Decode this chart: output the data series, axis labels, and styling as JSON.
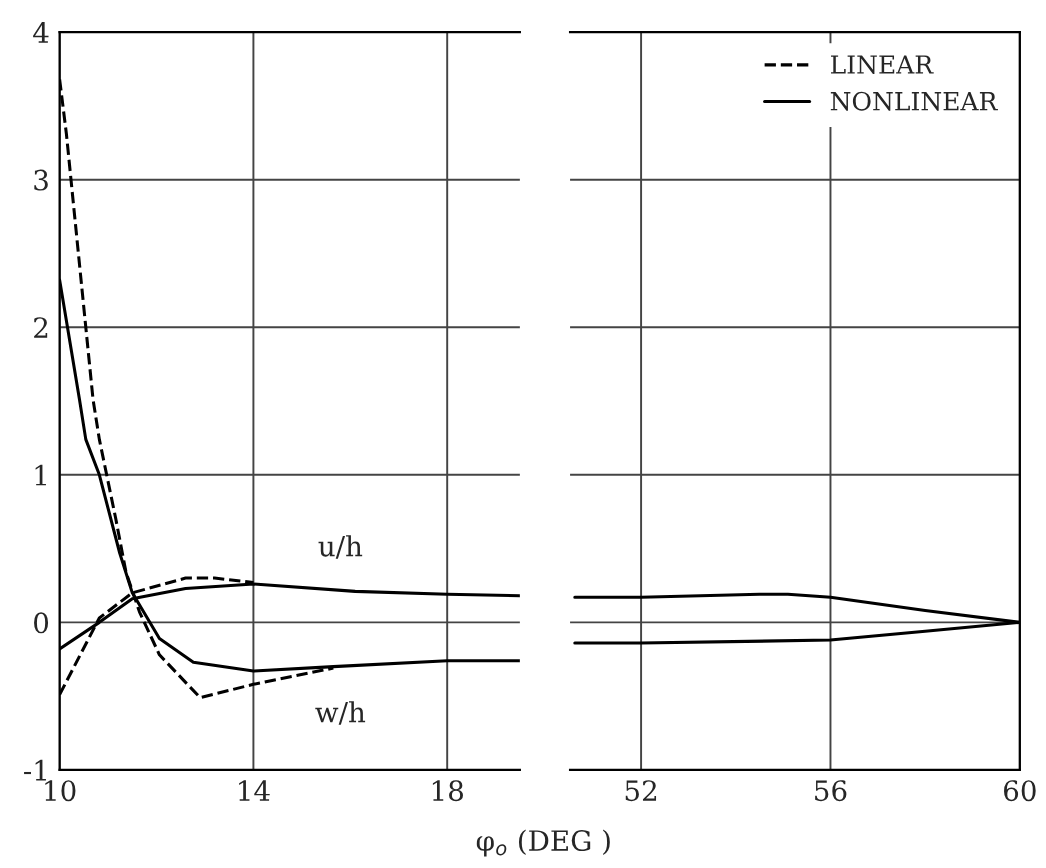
{
  "chart_data": [
    {
      "type": "line",
      "xlabel": "φ$_{o}$ (DEG )",
      "xlim": [
        10,
        19.5
      ],
      "xticks": [
        10,
        14,
        18
      ],
      "ylim": [
        -1,
        4
      ],
      "yticks": [
        -1,
        0,
        1,
        2,
        3,
        4
      ],
      "grid": true,
      "legend": "upper right",
      "annotations": [
        "u/h",
        "w/h"
      ],
      "series": [
        {
          "name": "LINEAR",
          "color": "#000000",
          "line_style": "dashed",
          "x": [
            10,
            10.14,
            10.69,
            10.82,
            11.16,
            11.37,
            11.65,
            12.06,
            12.9,
            14,
            15.65
          ],
          "values": [
            3.68,
            3.31,
            1.51,
            1.24,
            0.7,
            0.34,
            0.07,
            -0.22,
            -0.51,
            -0.42,
            -0.31
          ]
        },
        {
          "color": "#000000",
          "line_style": "dashed",
          "x": [
            10,
            10.82,
            11.5,
            12.6,
            13.2,
            14
          ],
          "values": [
            -0.49,
            0.03,
            0.2,
            0.3,
            0.3,
            0.27
          ]
        },
        {
          "name": "NONLINEAR",
          "color": "#000000",
          "line_style": "solid",
          "x": [
            10,
            10.41,
            10.54,
            10.82,
            11.24,
            11.5,
            12.06,
            12.76,
            14,
            15.65,
            18,
            19.5
          ],
          "values": [
            2.32,
            1.51,
            1.24,
            1.0,
            0.47,
            0.2,
            -0.11,
            -0.27,
            -0.33,
            -0.3,
            -0.26,
            -0.26
          ]
        },
        {
          "color": "#000000",
          "line_style": "solid",
          "x": [
            10,
            10.82,
            11.5,
            12.6,
            14,
            16.1,
            18,
            19.5
          ],
          "values": [
            -0.18,
            0,
            0.16,
            0.23,
            0.26,
            0.21,
            0.19,
            0.18
          ]
        }
      ]
    },
    {
      "type": "line",
      "xlim": [
        50.5,
        60
      ],
      "xticks": [
        52,
        56,
        60
      ],
      "ylim": [
        -1,
        4
      ],
      "yticks": [
        -1,
        0,
        1,
        2,
        3,
        4
      ],
      "grid": true,
      "tick_labels": "x",
      "series": [
        {
          "color": "#000000",
          "line_style": "solid",
          "x": [
            50.6,
            52,
            54.5,
            55.1,
            56,
            58,
            60
          ],
          "values": [
            0.17,
            0.17,
            0.19,
            0.19,
            0.17,
            0.08,
            0
          ]
        },
        {
          "color": "#000000",
          "line_style": "solid",
          "x": [
            50.6,
            52,
            56,
            58,
            60
          ],
          "values": [
            -0.14,
            -0.14,
            -0.12,
            -0.06,
            0
          ]
        }
      ]
    }
  ]
}
